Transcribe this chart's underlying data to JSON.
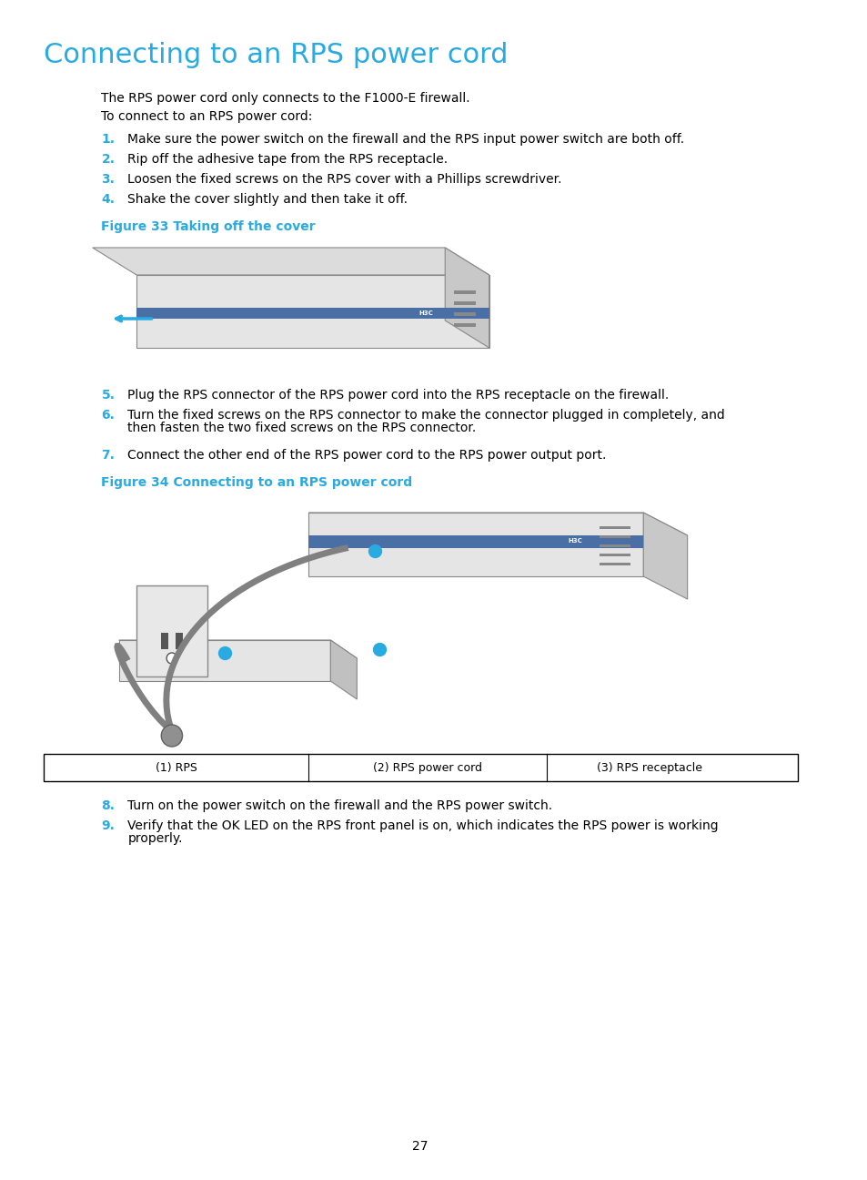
{
  "title": "Connecting to an RPS power cord",
  "title_color": "#29ABE2",
  "title_fontsize": 22,
  "body_fontsize": 10,
  "body_color": "#000000",
  "cyan_color": "#29ABE2",
  "background_color": "#FFFFFF",
  "intro_line": "The RPS power cord only connects to the F1000-E firewall.",
  "intro_line2": "To connect to an RPS power cord:",
  "steps_1_4": [
    {
      "num": "1.",
      "text": "Make sure the power switch on the firewall and the RPS input power switch are both off."
    },
    {
      "num": "2.",
      "text": "Rip off the adhesive tape from the RPS receptacle."
    },
    {
      "num": "3.",
      "text": "Loosen the fixed screws on the RPS cover with a Phillips screwdriver."
    },
    {
      "num": "4.",
      "text": "Shake the cover slightly and then take it off."
    }
  ],
  "fig33_label": "Figure 33 Taking off the cover",
  "steps_5_7": [
    {
      "num": "5.",
      "text": "Plug the RPS connector of the RPS power cord into the RPS receptacle on the firewall."
    },
    {
      "num": "6.",
      "text": "Turn the fixed screws on the RPS connector to make the connector plugged in completely, and\nthen fasten the two fixed screws on the RPS connector."
    },
    {
      "num": "7.",
      "text": "Connect the other end of the RPS power cord to the RPS power output port."
    }
  ],
  "fig34_label": "Figure 34 Connecting to an RPS power cord",
  "table_labels": [
    "(1) RPS",
    "(2) RPS power cord",
    "(3) RPS receptacle"
  ],
  "steps_8_9": [
    {
      "num": "8.",
      "text": "Turn on the power switch on the firewall and the RPS power switch."
    },
    {
      "num": "9.",
      "text": "Verify that the OK LED on the RPS front panel is on, which indicates the RPS power is working\nproperly."
    }
  ],
  "page_number": "27"
}
